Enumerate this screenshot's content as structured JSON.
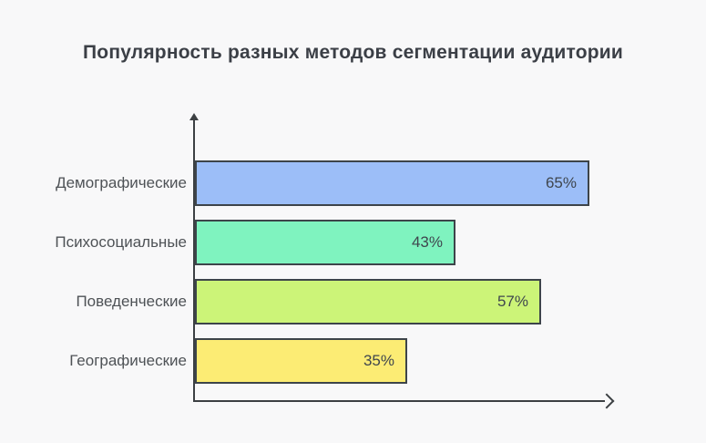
{
  "page": {
    "background_color": "#f8f8f9"
  },
  "chart_data": {
    "type": "bar",
    "orientation": "horizontal",
    "title": "Популярность разных методов сегментации аудитории",
    "categories": [
      "Демографические",
      "Психосоциальные",
      "Поведенческие",
      "Географические"
    ],
    "values": [
      65,
      43,
      57,
      35
    ],
    "value_labels": [
      "65%",
      "43%",
      "57%",
      "35%"
    ],
    "bar_colors": [
      "#9cbef8",
      "#7ff3bf",
      "#ccf478",
      "#fcec74"
    ],
    "bar_border_color": "#3d444a",
    "axis_color": "#3c4043",
    "title_color": "#3b3f46",
    "label_color": "#4e5256",
    "value_label_color": "#3f464e",
    "xlabel": "",
    "ylabel": "",
    "xlim": [
      0,
      100
    ],
    "grid": false,
    "legend": false
  }
}
